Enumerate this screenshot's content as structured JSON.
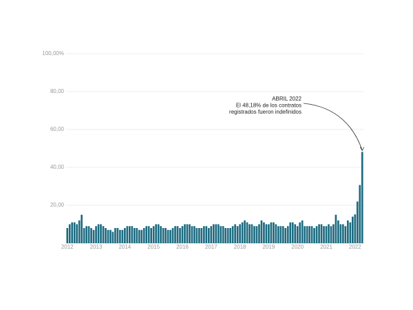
{
  "chart_data": {
    "type": "bar",
    "categories": [
      "2012",
      null,
      null,
      null,
      null,
      null,
      null,
      null,
      null,
      null,
      null,
      null,
      "2013",
      null,
      null,
      null,
      null,
      null,
      null,
      null,
      null,
      null,
      null,
      null,
      "2014",
      null,
      null,
      null,
      null,
      null,
      null,
      null,
      null,
      null,
      null,
      null,
      "2015",
      null,
      null,
      null,
      null,
      null,
      null,
      null,
      null,
      null,
      null,
      null,
      "2016",
      null,
      null,
      null,
      null,
      null,
      null,
      null,
      null,
      null,
      null,
      null,
      "2017",
      null,
      null,
      null,
      null,
      null,
      null,
      null,
      null,
      null,
      null,
      null,
      "2018",
      null,
      null,
      null,
      null,
      null,
      null,
      null,
      null,
      null,
      null,
      null,
      "2019",
      null,
      null,
      null,
      null,
      null,
      null,
      null,
      null,
      null,
      null,
      null,
      "2020",
      null,
      null,
      null,
      null,
      null,
      null,
      null,
      null,
      null,
      null,
      null,
      "2021",
      null,
      null,
      null,
      null,
      null,
      null,
      null,
      null,
      null,
      null,
      null,
      "2022",
      null,
      null,
      null
    ],
    "values": [
      8,
      10,
      11,
      11,
      10,
      12,
      15,
      8,
      9,
      9,
      8,
      7,
      9,
      10,
      10,
      9,
      8,
      7,
      7,
      6,
      8,
      8,
      7,
      7,
      8,
      9,
      9,
      9,
      8,
      8,
      7,
      7,
      8,
      9,
      9,
      8,
      9,
      10,
      10,
      9,
      8,
      8,
      7,
      7,
      8,
      9,
      9,
      8,
      9,
      10,
      10,
      10,
      9,
      9,
      8,
      8,
      8,
      9,
      9,
      8,
      9,
      10,
      10,
      10,
      9,
      9,
      8,
      8,
      8,
      9,
      10,
      9,
      10,
      11,
      12,
      11,
      10,
      10,
      9,
      9,
      10,
      12,
      11,
      10,
      10,
      11,
      11,
      10,
      9,
      9,
      9,
      8,
      9,
      11,
      11,
      10,
      9,
      11,
      12,
      9,
      9,
      9,
      9,
      8,
      9,
      10,
      10,
      9,
      9,
      10,
      9,
      10,
      15,
      12,
      10,
      10,
      9,
      12,
      11,
      14,
      15.2,
      22,
      30.7,
      48.18
    ],
    "color": "#1b6a80",
    "ylim": [
      0,
      100
    ],
    "yticks": [
      {
        "value": 20,
        "label": "20,00"
      },
      {
        "value": 40,
        "label": "40,00"
      },
      {
        "value": 60,
        "label": "60,00"
      },
      {
        "value": 80,
        "label": "80,00"
      },
      {
        "value": 100,
        "label": "100,00%"
      }
    ],
    "grid": true,
    "annotation": [
      "ABRIL 2022",
      "El 48,18% de los contratos",
      "registrados fueron indefinidos"
    ]
  }
}
